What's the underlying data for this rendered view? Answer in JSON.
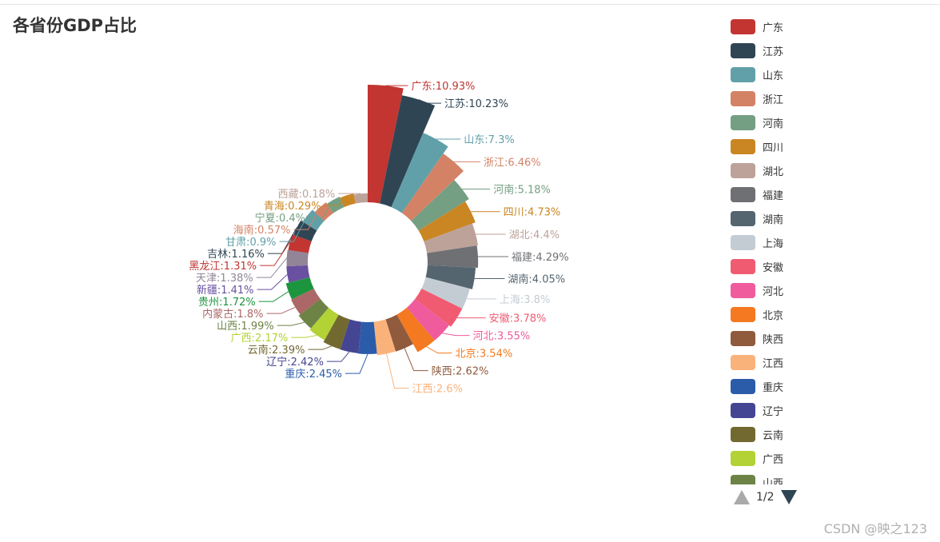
{
  "chart_data": {
    "type": "pie",
    "variant": "rose-donut",
    "title": "各省份GDP占比",
    "label_format": "{name}:{value}%",
    "slices": [
      {
        "name": "广东",
        "value": 10.93,
        "color": "#c23531"
      },
      {
        "name": "江苏",
        "value": 10.23,
        "color": "#2f4554"
      },
      {
        "name": "山东",
        "value": 7.3,
        "color": "#61a0a8"
      },
      {
        "name": "浙江",
        "value": 6.46,
        "color": "#d48265"
      },
      {
        "name": "河南",
        "value": 5.18,
        "color": "#749f83"
      },
      {
        "name": "四川",
        "value": 4.73,
        "color": "#ca8622"
      },
      {
        "name": "湖北",
        "value": 4.4,
        "color": "#bda29a"
      },
      {
        "name": "福建",
        "value": 4.29,
        "color": "#6e7074"
      },
      {
        "name": "湖南",
        "value": 4.05,
        "color": "#546570"
      },
      {
        "name": "上海",
        "value": 3.8,
        "color": "#c4ccd3"
      },
      {
        "name": "安徽",
        "value": 3.78,
        "color": "#f05b72"
      },
      {
        "name": "河北",
        "value": 3.55,
        "color": "#ef5b9c"
      },
      {
        "name": "北京",
        "value": 3.54,
        "color": "#f47920"
      },
      {
        "name": "陕西",
        "value": 2.62,
        "color": "#905a3d"
      },
      {
        "name": "江西",
        "value": 2.6,
        "color": "#fab27b"
      },
      {
        "name": "重庆",
        "value": 2.45,
        "color": "#2a5caa"
      },
      {
        "name": "辽宁",
        "value": 2.42,
        "color": "#444693"
      },
      {
        "name": "云南",
        "value": 2.39,
        "color": "#726930"
      },
      {
        "name": "广西",
        "value": 2.17,
        "color": "#b2d235"
      },
      {
        "name": "山西",
        "value": 1.99,
        "color": "#6d8346"
      },
      {
        "name": "内蒙古",
        "value": 1.8,
        "color": "#ac6767"
      },
      {
        "name": "贵州",
        "value": 1.72,
        "color": "#1d953f"
      },
      {
        "name": "新疆",
        "value": 1.41,
        "color": "#6950a1"
      },
      {
        "name": "天津",
        "value": 1.38,
        "color": "#918597"
      },
      {
        "name": "黑龙江",
        "value": 1.31,
        "color": "#c23531"
      },
      {
        "name": "吉林",
        "value": 1.16,
        "color": "#2f4554"
      },
      {
        "name": "甘肃",
        "value": 0.9,
        "color": "#61a0a8"
      },
      {
        "name": "海南",
        "value": 0.57,
        "color": "#d48265"
      },
      {
        "name": "宁夏",
        "value": 0.4,
        "color": "#749f83"
      },
      {
        "name": "青海",
        "value": 0.29,
        "color": "#ca8622"
      },
      {
        "name": "西藏",
        "value": 0.18,
        "color": "#bda29a"
      }
    ],
    "legend_position": "right",
    "legend_visible": [
      "广东",
      "江苏",
      "山东",
      "浙江",
      "河南",
      "四川",
      "湖北",
      "福建",
      "湖南",
      "上海",
      "安徽",
      "河北",
      "北京",
      "陕西",
      "江西",
      "重庆",
      "辽宁",
      "云南",
      "广西",
      "山西"
    ]
  },
  "legend_pager": {
    "text": "1/2",
    "prev_icon": "triangle-up-icon",
    "next_icon": "triangle-down-icon"
  },
  "watermark": "CSDN @映之123"
}
